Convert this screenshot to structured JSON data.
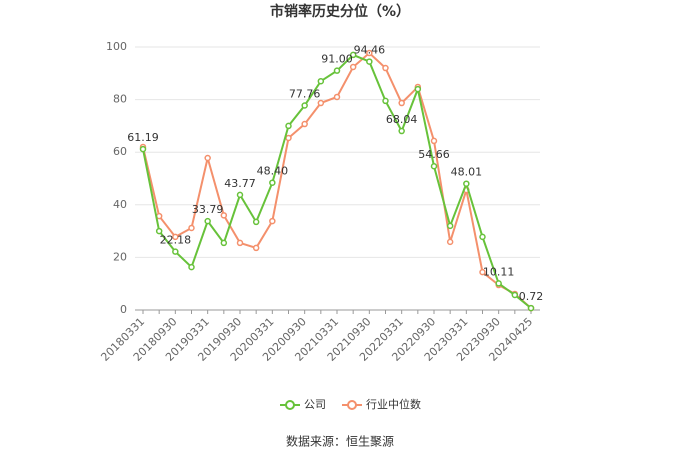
{
  "chart_data": {
    "type": "line",
    "title": "市销率历史分位（%）",
    "categories": [
      "20180331",
      null,
      "20180930",
      null,
      "20190331",
      null,
      "20190930",
      null,
      "20200331",
      null,
      "20200930",
      null,
      "20210331",
      null,
      "20210930",
      null,
      "20220331",
      null,
      "20220930",
      null,
      "20230331",
      null,
      "20230930",
      null,
      "20240425"
    ],
    "series": [
      {
        "name": "公司",
        "color": "#67c23a",
        "values": [
          61.19,
          30,
          22.18,
          16.3,
          33.79,
          25.5,
          43.77,
          33.5,
          48.4,
          70,
          77.76,
          87,
          91.0,
          97,
          94.46,
          79.5,
          68.04,
          84,
          54.66,
          32,
          48.01,
          27.8,
          10.11,
          5.7,
          0.72
        ],
        "value_labels": [
          "61.19",
          null,
          "22.18",
          null,
          "33.79",
          null,
          "43.77",
          null,
          "48.40",
          null,
          "77.76",
          null,
          "91.00",
          null,
          "94.46",
          null,
          "68.04",
          null,
          "54.66",
          null,
          "48.01",
          null,
          "10.11",
          null,
          "0.72"
        ]
      },
      {
        "name": "行业中位数",
        "color": "#f4906c",
        "values": [
          62,
          35.7,
          27.8,
          31.2,
          57.8,
          36,
          25.5,
          23.6,
          33.8,
          65.4,
          70.7,
          78.7,
          81,
          92.4,
          97.7,
          92,
          78.7,
          84.8,
          64.3,
          25.9,
          45.6,
          14.4,
          9.5,
          6.1,
          0.7
        ]
      }
    ],
    "ylim": [
      0,
      100
    ],
    "yticks": [
      0,
      20,
      40,
      60,
      80,
      100
    ],
    "grid": true,
    "source": "数据来源：恒生聚源"
  }
}
